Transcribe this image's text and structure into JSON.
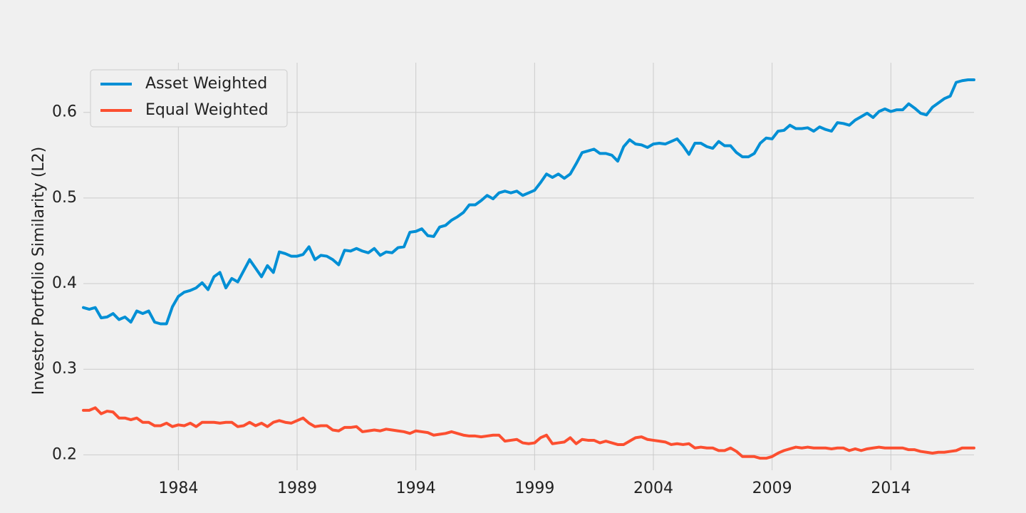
{
  "chart_data": {
    "type": "line",
    "y_label": "Investor Portfolio Similarity (L2)",
    "x": [
      1980,
      1980.25,
      1980.5,
      1980.75,
      1981,
      1981.25,
      1981.5,
      1981.75,
      1982,
      1982.25,
      1982.5,
      1982.75,
      1983,
      1983.25,
      1983.5,
      1983.75,
      1984,
      1984.25,
      1984.5,
      1984.75,
      1985,
      1985.25,
      1985.5,
      1985.75,
      1986,
      1986.25,
      1986.5,
      1986.75,
      1987,
      1987.25,
      1987.5,
      1987.75,
      1988,
      1988.25,
      1988.5,
      1988.75,
      1989,
      1989.25,
      1989.5,
      1989.75,
      1990,
      1990.25,
      1990.5,
      1990.75,
      1991,
      1991.25,
      1991.5,
      1991.75,
      1992,
      1992.25,
      1992.5,
      1992.75,
      1993,
      1993.25,
      1993.5,
      1993.75,
      1994,
      1994.25,
      1994.5,
      1994.75,
      1995,
      1995.25,
      1995.5,
      1995.75,
      1996,
      1996.25,
      1996.5,
      1996.75,
      1997,
      1997.25,
      1997.5,
      1997.75,
      1998,
      1998.25,
      1998.5,
      1998.75,
      1999,
      1999.25,
      1999.5,
      1999.75,
      2000,
      2000.25,
      2000.5,
      2000.75,
      2001,
      2001.25,
      2001.5,
      2001.75,
      2002,
      2002.25,
      2002.5,
      2002.75,
      2003,
      2003.25,
      2003.5,
      2003.75,
      2004,
      2004.25,
      2004.5,
      2004.75,
      2005,
      2005.25,
      2005.5,
      2005.75,
      2006,
      2006.25,
      2006.5,
      2006.75,
      2007,
      2007.25,
      2007.5,
      2007.75,
      2008,
      2008.25,
      2008.5,
      2008.75,
      2009,
      2009.25,
      2009.5,
      2009.75,
      2010,
      2010.25,
      2010.5,
      2010.75,
      2011,
      2011.25,
      2011.5,
      2011.75,
      2012,
      2012.25,
      2012.5,
      2012.75,
      2013,
      2013.25,
      2013.5,
      2013.75,
      2014,
      2014.25,
      2014.5,
      2014.75,
      2015,
      2015.25,
      2015.5,
      2015.75,
      2016,
      2016.25,
      2016.5,
      2016.75,
      2017,
      2017.25,
      2017.5
    ],
    "series": [
      {
        "name": "Asset Weighted",
        "color": "#008fd5",
        "values": [
          0.372,
          0.37,
          0.372,
          0.36,
          0.361,
          0.365,
          0.358,
          0.361,
          0.355,
          0.368,
          0.365,
          0.368,
          0.355,
          0.353,
          0.353,
          0.373,
          0.385,
          0.39,
          0.392,
          0.395,
          0.401,
          0.393,
          0.408,
          0.413,
          0.395,
          0.406,
          0.402,
          0.415,
          0.428,
          0.418,
          0.408,
          0.421,
          0.413,
          0.437,
          0.435,
          0.432,
          0.432,
          0.434,
          0.443,
          0.428,
          0.433,
          0.432,
          0.428,
          0.422,
          0.439,
          0.438,
          0.441,
          0.438,
          0.436,
          0.441,
          0.433,
          0.437,
          0.436,
          0.442,
          0.443,
          0.46,
          0.461,
          0.464,
          0.456,
          0.455,
          0.466,
          0.468,
          0.474,
          0.478,
          0.483,
          0.492,
          0.492,
          0.497,
          0.503,
          0.499,
          0.506,
          0.508,
          0.506,
          0.508,
          0.503,
          0.506,
          0.509,
          0.518,
          0.528,
          0.524,
          0.528,
          0.523,
          0.528,
          0.54,
          0.553,
          0.555,
          0.557,
          0.552,
          0.552,
          0.55,
          0.543,
          0.56,
          0.568,
          0.563,
          0.562,
          0.559,
          0.563,
          0.564,
          0.563,
          0.566,
          0.569,
          0.561,
          0.551,
          0.564,
          0.564,
          0.56,
          0.558,
          0.566,
          0.561,
          0.561,
          0.553,
          0.548,
          0.548,
          0.552,
          0.564,
          0.57,
          0.569,
          0.578,
          0.579,
          0.585,
          0.581,
          0.581,
          0.582,
          0.578,
          0.583,
          0.58,
          0.578,
          0.588,
          0.587,
          0.585,
          0.591,
          0.595,
          0.599,
          0.594,
          0.601,
          0.604,
          0.601,
          0.603,
          0.603,
          0.61,
          0.605,
          0.599,
          0.597,
          0.606,
          0.611,
          0.616,
          0.619,
          0.635,
          0.637,
          0.638,
          0.638
        ]
      },
      {
        "name": "Equal Weighted",
        "color": "#fc4f30",
        "values": [
          0.252,
          0.252,
          0.255,
          0.248,
          0.251,
          0.25,
          0.243,
          0.243,
          0.241,
          0.243,
          0.238,
          0.238,
          0.234,
          0.234,
          0.237,
          0.233,
          0.235,
          0.234,
          0.237,
          0.233,
          0.238,
          0.238,
          0.238,
          0.237,
          0.238,
          0.238,
          0.233,
          0.234,
          0.238,
          0.234,
          0.237,
          0.233,
          0.238,
          0.24,
          0.238,
          0.237,
          0.24,
          0.243,
          0.237,
          0.233,
          0.234,
          0.234,
          0.229,
          0.228,
          0.232,
          0.232,
          0.233,
          0.227,
          0.228,
          0.229,
          0.228,
          0.23,
          0.229,
          0.228,
          0.227,
          0.225,
          0.228,
          0.227,
          0.226,
          0.223,
          0.224,
          0.225,
          0.227,
          0.225,
          0.223,
          0.222,
          0.222,
          0.221,
          0.222,
          0.223,
          0.223,
          0.216,
          0.217,
          0.218,
          0.214,
          0.213,
          0.214,
          0.22,
          0.223,
          0.213,
          0.214,
          0.215,
          0.22,
          0.213,
          0.218,
          0.217,
          0.217,
          0.214,
          0.216,
          0.214,
          0.212,
          0.212,
          0.216,
          0.22,
          0.221,
          0.218,
          0.217,
          0.216,
          0.215,
          0.212,
          0.213,
          0.212,
          0.213,
          0.208,
          0.209,
          0.208,
          0.208,
          0.205,
          0.205,
          0.208,
          0.204,
          0.198,
          0.198,
          0.198,
          0.196,
          0.196,
          0.198,
          0.202,
          0.205,
          0.207,
          0.209,
          0.208,
          0.209,
          0.208,
          0.208,
          0.208,
          0.207,
          0.208,
          0.208,
          0.205,
          0.207,
          0.205,
          0.207,
          0.208,
          0.209,
          0.208,
          0.208,
          0.208,
          0.208,
          0.206,
          0.206,
          0.204,
          0.203,
          0.202,
          0.203,
          0.203,
          0.204,
          0.205,
          0.208,
          0.208,
          0.208
        ]
      }
    ],
    "xlim": [
      1980,
      2017.5
    ],
    "xticks": [
      1984,
      1989,
      1994,
      1999,
      2004,
      2009,
      2014
    ],
    "ylim": [
      0.182,
      0.658
    ],
    "yticks": [
      0.2,
      0.3,
      0.4,
      0.5,
      0.6
    ],
    "grid": true,
    "legend": "upper left"
  }
}
